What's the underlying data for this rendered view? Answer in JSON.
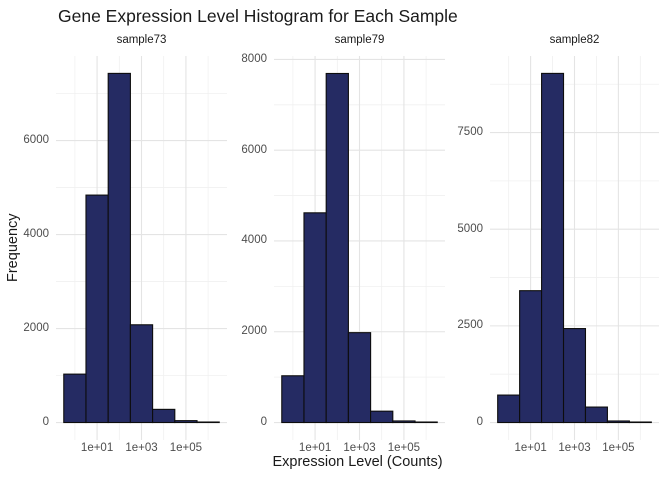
{
  "colors": {
    "background": "#ffffff",
    "bar_fill": "#252b63",
    "bar_stroke": "#0d0d0d",
    "grid_major": "#e4e4e4",
    "grid_minor": "#f0f0f0",
    "axis_text": "#4d4d4d",
    "title_text": "#1a1a1a"
  },
  "chart_data": {
    "type": "bar",
    "subtype": "faceted-histogram",
    "title": "Gene Expression Level Histogram for Each Sample",
    "xlabel": "Expression Level (Counts)",
    "ylabel": "Frequency",
    "x_scale": "log10",
    "grid": true,
    "legend": false,
    "bin_edges_log10": [
      -0.5,
      0.5,
      1.5,
      2.5,
      3.5,
      4.5,
      5.5,
      6.5
    ],
    "xlim_log10": [
      -0.85,
      6.85
    ],
    "x_ticks": [
      {
        "log10": 1,
        "label": "1e+01"
      },
      {
        "log10": 3,
        "label": "1e+03"
      },
      {
        "log10": 5,
        "label": "1e+05"
      }
    ],
    "x_minor_log10": [
      0,
      2,
      4,
      6
    ],
    "panels": [
      {
        "label": "sample73",
        "values": [
          1030,
          4840,
          7430,
          2080,
          280,
          40,
          10
        ],
        "y_ticks": [
          0,
          2000,
          4000,
          6000
        ],
        "y_minor": [
          1000,
          3000,
          5000,
          7000
        ],
        "ylim": [
          -372,
          7800
        ]
      },
      {
        "label": "sample79",
        "values": [
          1030,
          4620,
          7690,
          1980,
          250,
          35,
          10
        ],
        "y_ticks": [
          0,
          2000,
          4000,
          6000,
          8000
        ],
        "y_minor": [
          1000,
          3000,
          5000,
          7000
        ],
        "ylim": [
          -385,
          8075
        ]
      },
      {
        "label": "sample82",
        "values": [
          710,
          3410,
          9030,
          2430,
          400,
          40,
          10
        ],
        "y_ticks": [
          0,
          2500,
          5000,
          7500
        ],
        "y_minor": [
          1250,
          3750,
          6250,
          8750
        ],
        "ylim": [
          -452,
          9480
        ]
      }
    ]
  }
}
